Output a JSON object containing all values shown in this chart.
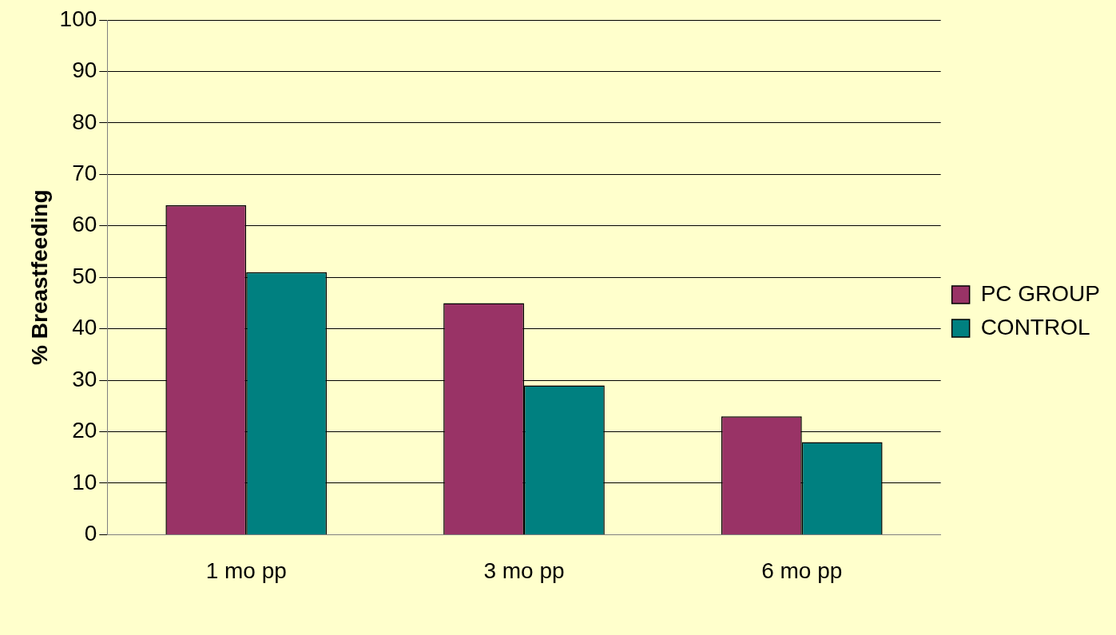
{
  "chart_data": {
    "type": "bar",
    "ylabel": "% Breastfeeding",
    "categories": [
      "1 mo pp",
      "3 mo pp",
      "6 mo pp"
    ],
    "series": [
      {
        "name": "PC GROUP",
        "color": "#993366",
        "values": [
          64,
          45,
          23
        ]
      },
      {
        "name": "CONTROL",
        "color": "#008080",
        "values": [
          51,
          29,
          18
        ]
      }
    ],
    "ylim": [
      0,
      100
    ],
    "yticks": [
      0,
      10,
      20,
      30,
      40,
      50,
      60,
      70,
      80,
      90,
      100
    ],
    "grid": "y",
    "legend": "right"
  }
}
